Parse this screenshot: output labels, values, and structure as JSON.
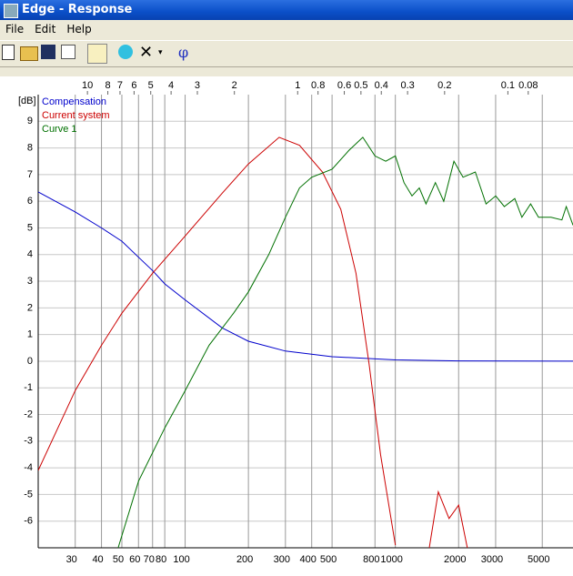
{
  "window": {
    "title": "Edge - Response",
    "menu": [
      "File",
      "Edit",
      "Help"
    ],
    "toolbar": {
      "phase_button": "φ"
    }
  },
  "chart_data": {
    "type": "line",
    "y_label": "[dB]",
    "xscale": "log",
    "grid": true,
    "xlim": [
      20,
      7000
    ],
    "xticks": [
      30,
      40,
      50,
      60,
      70,
      80,
      100,
      200,
      300,
      400,
      500,
      800,
      1000,
      2000,
      3000,
      5000
    ],
    "x2lim": [
      17.15,
      0.049
    ],
    "x2ticks": [
      10,
      8,
      7,
      6,
      5,
      4,
      3,
      2,
      1,
      0.8,
      0.6,
      0.5,
      0.4,
      0.3,
      0.2,
      0.1,
      0.08
    ],
    "ylim": [
      -7,
      10
    ],
    "yticks": [
      -6,
      -5,
      -4,
      -3,
      -2,
      -1,
      0,
      1,
      2,
      3,
      4,
      5,
      6,
      7,
      8,
      9
    ],
    "legend": "top-left",
    "series": [
      {
        "name": "Compensation",
        "color": "#0000cc",
        "x": [
          20,
          30,
          40,
          50,
          60,
          70,
          80,
          100,
          150,
          200,
          300,
          500,
          1000,
          2000,
          7000
        ],
        "values": [
          6.35,
          5.6,
          5.0,
          4.5,
          3.9,
          3.4,
          2.9,
          2.3,
          1.25,
          0.75,
          0.38,
          0.17,
          0.05,
          0.01,
          0
        ]
      },
      {
        "name": "Current system",
        "color": "#cc0000",
        "x": [
          20,
          30,
          40,
          50,
          70,
          100,
          150,
          200,
          280,
          350,
          450,
          550,
          650,
          750,
          850,
          1000,
          1200,
          1450,
          1600,
          1800,
          2000,
          2200
        ],
        "values": [
          -4.1,
          -1.1,
          0.6,
          1.8,
          3.3,
          4.7,
          6.3,
          7.4,
          8.4,
          8.1,
          7.1,
          5.7,
          3.3,
          -0.1,
          -3.5,
          -6.9,
          null,
          -7.0,
          -4.9,
          -5.9,
          -5.4,
          -7.0
        ]
      },
      {
        "name": "Curve 1",
        "color": "#007000",
        "x": [
          48,
          60,
          80,
          100,
          130,
          170,
          200,
          250,
          300,
          350,
          400,
          500,
          600,
          700,
          800,
          900,
          1000,
          1100,
          1200,
          1300,
          1400,
          1550,
          1700,
          1900,
          2100,
          2400,
          2700,
          3000,
          3300,
          3700,
          4000,
          4400,
          4800,
          5500,
          6200,
          6500,
          7000
        ],
        "values": [
          -7.0,
          -4.5,
          -2.5,
          -1.1,
          0.6,
          1.8,
          2.6,
          4.0,
          5.4,
          6.5,
          6.9,
          7.2,
          7.9,
          8.4,
          7.7,
          7.5,
          7.7,
          6.7,
          6.2,
          6.5,
          5.9,
          6.7,
          6.0,
          7.5,
          6.9,
          7.1,
          5.9,
          6.2,
          5.8,
          6.1,
          5.4,
          5.9,
          5.4,
          5.4,
          5.3,
          5.8,
          5.1
        ]
      }
    ]
  }
}
